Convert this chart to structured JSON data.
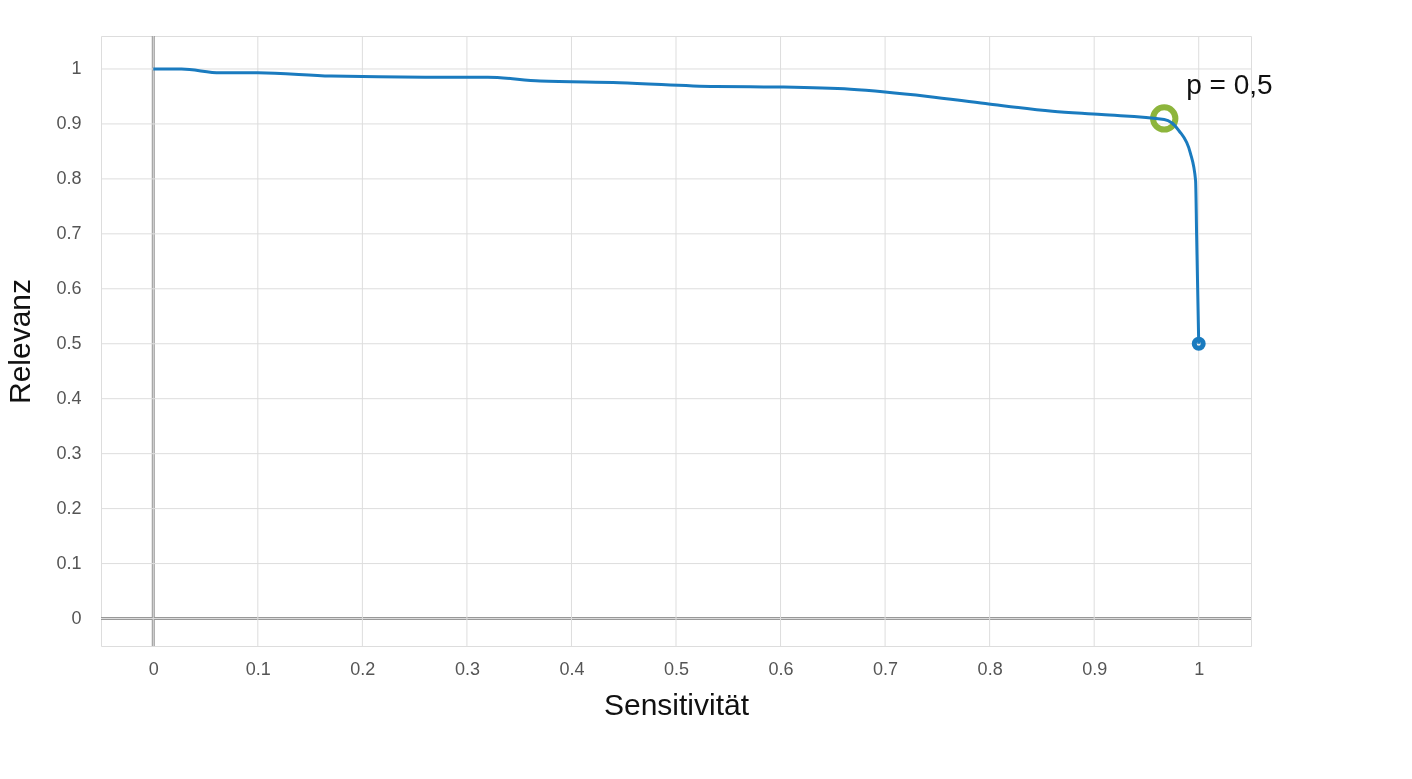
{
  "chart_data": {
    "type": "line",
    "xlabel": "Sensitivität",
    "ylabel": "Relevanz",
    "xlim": [
      -0.05,
      1.05
    ],
    "ylim": [
      -0.05,
      1.06
    ],
    "xticks": [
      0,
      0.1,
      0.2,
      0.3,
      0.4,
      0.5,
      0.6,
      0.7,
      0.8,
      0.9,
      1
    ],
    "yticks": [
      0,
      0.1,
      0.2,
      0.3,
      0.4,
      0.5,
      0.6,
      0.7,
      0.8,
      0.9,
      1
    ],
    "grid": true,
    "marker": "none",
    "line_style": "solid",
    "series": [
      {
        "color": "#1a7bbf",
        "x": [
          0,
          0.027,
          0.064,
          0.1,
          0.17,
          0.26,
          0.32,
          0.37,
          0.446,
          0.538,
          0.603,
          0.667,
          0.7,
          0.741,
          0.796,
          0.86,
          0.907,
          0.967,
          0.981,
          0.992,
          0.997,
          0.998,
          1.0
        ],
        "values": [
          1.0,
          1.0,
          0.993,
          0.993,
          0.987,
          0.985,
          0.985,
          0.978,
          0.975,
          0.968,
          0.967,
          0.963,
          0.958,
          0.95,
          0.937,
          0.923,
          0.917,
          0.908,
          0.888,
          0.847,
          0.797,
          0.697,
          0.5
        ]
      },
      {
        "type": "scatter",
        "color": "#1a7bbf",
        "marker": "circle",
        "x": [
          1.0
        ],
        "values": [
          0.5
        ]
      },
      {
        "type": "scatter",
        "color": "#8db53c",
        "marker": "circle",
        "x": [
          0.967
        ],
        "values": [
          0.91
        ]
      }
    ],
    "annotations": [
      {
        "text": "p = 0,5",
        "x": 0.967,
        "y": 0.91
      }
    ]
  }
}
